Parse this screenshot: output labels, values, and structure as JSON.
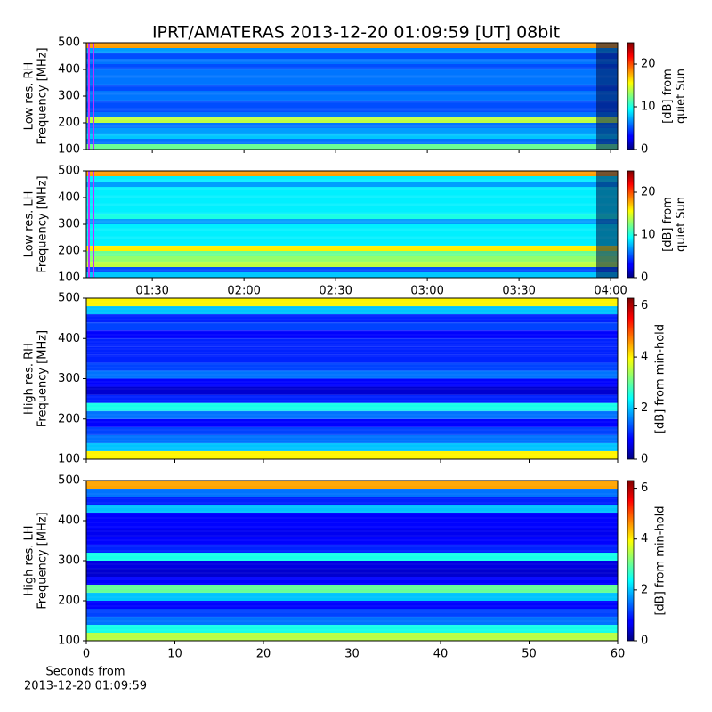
{
  "chart_data": [
    {
      "type": "heatmap",
      "title": "IPRT/AMATERAS 2013-12-20 01:09:59 [UT]   08bit",
      "ylabel": [
        "Low res. RH",
        "Frequency [MHz]"
      ],
      "ylim": [
        100,
        500
      ],
      "yticks": [
        100,
        200,
        300,
        400,
        500
      ],
      "xlim": [
        68.4,
        242.3
      ],
      "sharex": 1,
      "freq_edges": [
        100,
        120,
        140,
        160,
        180,
        200,
        220,
        240,
        260,
        280,
        300,
        320,
        340,
        360,
        380,
        400,
        420,
        440,
        460,
        480,
        500
      ],
      "values": [
        12,
        6,
        8,
        7,
        6,
        14,
        6,
        5,
        5,
        6,
        6,
        5,
        6,
        6,
        6,
        5,
        6,
        5,
        7,
        18
      ],
      "zlim": [
        0,
        25
      ],
      "zticks": [
        0,
        10,
        20
      ],
      "zlabel": [
        "[dB] from",
        "quiet Sun"
      ],
      "colormap": "jet"
    },
    {
      "type": "heatmap",
      "ylabel": [
        "Low res. LH",
        "Frequency [MHz]"
      ],
      "ylim": [
        100,
        500
      ],
      "yticks": [
        100,
        200,
        300,
        400,
        500
      ],
      "xlim": [
        68.4,
        242.3
      ],
      "xticks": [
        {
          "value": 90,
          "label": "01:30"
        },
        {
          "value": 120,
          "label": "02:00"
        },
        {
          "value": 150,
          "label": "02:30"
        },
        {
          "value": 180,
          "label": "03:00"
        },
        {
          "value": 210,
          "label": "03:30"
        },
        {
          "value": 240,
          "label": "04:00"
        }
      ],
      "freq_edges": [
        100,
        120,
        140,
        160,
        180,
        200,
        220,
        240,
        260,
        280,
        300,
        320,
        340,
        360,
        380,
        400,
        420,
        440,
        460,
        480,
        500
      ],
      "values": [
        8,
        5,
        14,
        13,
        12,
        16,
        9,
        9,
        9,
        9,
        7,
        10,
        9,
        9,
        9,
        9,
        9,
        7,
        9,
        18
      ],
      "zlim": [
        0,
        25
      ],
      "zticks": [
        0,
        10,
        20
      ],
      "zlabel": [
        "[dB] from",
        "quiet Sun"
      ],
      "colormap": "jet"
    },
    {
      "type": "heatmap",
      "ylabel": [
        "High res. RH",
        "Frequency [MHz]"
      ],
      "ylim": [
        100,
        500
      ],
      "yticks": [
        100,
        200,
        300,
        400,
        500
      ],
      "xlim": [
        0,
        60
      ],
      "sharex": 3,
      "freq_edges": [
        100,
        120,
        140,
        160,
        180,
        200,
        220,
        240,
        260,
        280,
        300,
        320,
        340,
        360,
        380,
        400,
        420,
        440,
        460,
        480,
        500
      ],
      "values": [
        4,
        2,
        1.5,
        1.2,
        0.8,
        1.5,
        2.5,
        1,
        0.5,
        0.8,
        1.5,
        1.2,
        1,
        1,
        1,
        0.8,
        1.2,
        1,
        2,
        4
      ],
      "zlim": [
        0,
        6.3
      ],
      "zticks": [
        0,
        2,
        4,
        6
      ],
      "zlabel": [
        "[dB] from min-hold"
      ],
      "colormap": "jet"
    },
    {
      "type": "heatmap",
      "ylabel": [
        "High res. LH",
        "Frequency [MHz]"
      ],
      "ylim": [
        100,
        500
      ],
      "yticks": [
        100,
        200,
        300,
        400,
        500
      ],
      "xlim": [
        0,
        60
      ],
      "xticks": [
        0,
        10,
        20,
        30,
        40,
        50,
        60
      ],
      "xlabel": [
        "Seconds from",
        "2013-12-20 01:09:59"
      ],
      "freq_edges": [
        100,
        120,
        140,
        160,
        180,
        200,
        220,
        240,
        260,
        280,
        300,
        320,
        340,
        360,
        380,
        400,
        420,
        440,
        460,
        480,
        500
      ],
      "values": [
        3.5,
        2.5,
        1.5,
        1.2,
        0.8,
        2,
        3,
        0.8,
        0.5,
        0.6,
        2.5,
        1,
        0.8,
        0.7,
        0.8,
        0.8,
        2,
        1,
        1.5,
        4.5
      ],
      "zlim": [
        0,
        6.3
      ],
      "zticks": [
        0,
        2,
        4,
        6
      ],
      "zlabel": [
        "[dB] from min-hold"
      ],
      "colormap": "jet"
    }
  ]
}
